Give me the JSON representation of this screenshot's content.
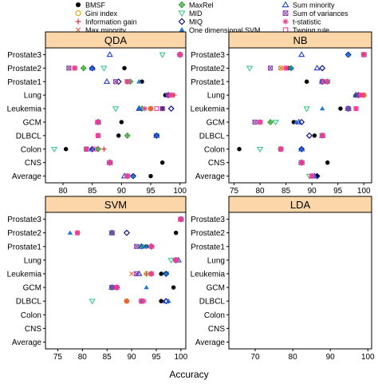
{
  "legend": [
    {
      "name": "BMSF",
      "marker": "dot",
      "color": "#000000"
    },
    {
      "name": "Gini index",
      "marker": "circle",
      "color": "#e69f00"
    },
    {
      "name": "Information gain",
      "marker": "plus",
      "color": "#d62728"
    },
    {
      "name": "Max minority",
      "marker": "x",
      "color": "#e8633a"
    },
    {
      "name": "MaxRel",
      "marker": "diamondplus",
      "color": "#2ca02c"
    },
    {
      "name": "MID",
      "marker": "tridown",
      "color": "#3cc889"
    },
    {
      "name": "MIQ",
      "marker": "diamond",
      "color": "#000080"
    },
    {
      "name": "One dimensional SVM",
      "marker": "trifill",
      "color": "#1f77d4"
    },
    {
      "name": "Sum minority",
      "marker": "triup",
      "color": "#1f3fd4"
    },
    {
      "name": "Sum of variances",
      "marker": "boxx",
      "color": "#8e44ad"
    },
    {
      "name": "t-statistic",
      "marker": "asterisk",
      "color": "#e83e8c"
    },
    {
      "name": "Twoing rule",
      "marker": "square",
      "color": "#ff3fa4"
    }
  ],
  "chart_data": {
    "type": "scatter",
    "xlabel": "Accuracy",
    "categories": [
      "Average",
      "CNS",
      "Colon",
      "DLBCL",
      "GCM",
      "Leukemia",
      "Lung",
      "Prostate1",
      "Prostate2",
      "Prostate3"
    ],
    "panels": [
      {
        "title": "QDA",
        "xlim": [
          77,
          101
        ],
        "xticks": [
          80,
          85,
          90,
          95,
          100
        ],
        "rows": {
          "Prostate3": {
            "BMSF": 100,
            "Gini index": 100,
            "Information gain": 100,
            "Max minority": 100,
            "MaxRel": 100,
            "MID": 97,
            "MIQ": 100,
            "One dimensional SVM": 100,
            "Sum minority": 88,
            "Sum of variances": 100,
            "t-statistic": 100,
            "Twoing rule": 100
          },
          "Prostate2": {
            "BMSF": 90.5,
            "Gini index": 82,
            "Information gain": 82,
            "Max minority": 81,
            "MaxRel": 83.5,
            "MID": 87,
            "MIQ": 85,
            "One dimensional SVM": 85,
            "Sum minority": 85,
            "Sum of variances": 81,
            "t-statistic": 82,
            "Twoing rule": 82
          },
          "Prostate1": {
            "BMSF": 93.5,
            "Gini index": 91,
            "Information gain": 91,
            "Max minority": 91,
            "MaxRel": 91.5,
            "MID": 91,
            "MIQ": 89.5,
            "One dimensional SVM": 93,
            "Sum minority": 87.5,
            "Sum of variances": 89,
            "t-statistic": 91,
            "Twoing rule": 91
          },
          "Lung": {
            "BMSF": 97.5,
            "Gini index": 98.5,
            "Information gain": 99,
            "Max minority": 98.5,
            "MaxRel": 98,
            "MID": 98,
            "MIQ": 98,
            "One dimensional SVM": 98,
            "Sum minority": 98,
            "Sum of variances": 98,
            "t-statistic": 98.5,
            "Twoing rule": 98.5
          },
          "Leukemia": {
            "BMSF": 97,
            "Gini index": 95,
            "Information gain": 95,
            "Max minority": 95,
            "MaxRel": 93.5,
            "MID": 89,
            "MIQ": 98.5,
            "One dimensional SVM": 93,
            "Sum minority": 93,
            "Sum of variances": 97,
            "t-statistic": 94,
            "Twoing rule": 96
          },
          "GCM": {
            "BMSF": 90,
            "Gini index": 86,
            "Information gain": 86,
            "Max minority": 86,
            "MaxRel": 86,
            "MID": 86,
            "MIQ": 86,
            "One dimensional SVM": 86,
            "Sum minority": 86,
            "Sum of variances": 86,
            "t-statistic": 86,
            "Twoing rule": 86
          },
          "DLBCL": {
            "BMSF": 89.5,
            "Gini index": 86,
            "Information gain": 86,
            "Max minority": 86,
            "MaxRel": 91,
            "MID": 96,
            "MIQ": 96,
            "One dimensional SVM": 96,
            "Sum minority": 96,
            "Sum of variances": 86,
            "t-statistic": 86,
            "Twoing rule": 86
          },
          "Colon": {
            "BMSF": 80.5,
            "Gini index": 84,
            "Information gain": 87,
            "Max minority": 84,
            "MaxRel": 86,
            "MID": 78.5,
            "MIQ": 85,
            "One dimensional SVM": 85,
            "Sum minority": 85,
            "Sum of variances": 84,
            "t-statistic": 84,
            "Twoing rule": 85.5
          },
          "CNS": {
            "BMSF": 97,
            "Gini index": 88,
            "Information gain": 88,
            "Max minority": 88,
            "MaxRel": 88,
            "MID": 88,
            "MIQ": 88,
            "One dimensional SVM": 88,
            "Sum minority": 88,
            "Sum of variances": 88,
            "t-statistic": 88,
            "Twoing rule": 88
          },
          "Average": {
            "BMSF": 95,
            "Gini index": 91,
            "Information gain": 91,
            "Max minority": 91,
            "MaxRel": 91,
            "MID": 91,
            "MIQ": 92,
            "One dimensional SVM": 92,
            "Sum minority": 90.5,
            "Sum of variances": 91,
            "t-statistic": 91,
            "Twoing rule": 91
          }
        }
      },
      {
        "title": "NB",
        "xlim": [
          74,
          101.5
        ],
        "xticks": [
          75,
          80,
          85,
          90,
          95,
          100
        ],
        "rows": {
          "Prostate3": {
            "BMSF": 100,
            "Gini index": 100,
            "Information gain": 100,
            "Max minority": 100,
            "MaxRel": 100,
            "MID": 100,
            "MIQ": 97,
            "One dimensional SVM": 97,
            "Sum minority": 88,
            "Sum of variances": 100,
            "t-statistic": 100,
            "Twoing rule": 100
          },
          "Prostate2": {
            "BMSF": 85.5,
            "Gini index": 84,
            "Information gain": 85,
            "Max minority": 84,
            "MaxRel": 86,
            "MID": 78,
            "MIQ": 92,
            "One dimensional SVM": 86,
            "Sum minority": 91,
            "Sum of variances": 82,
            "t-statistic": 85,
            "Twoing rule": 85
          },
          "Prostate1": {
            "BMSF": 89,
            "Gini index": 93,
            "Information gain": 93,
            "Max minority": 93,
            "MaxRel": 93,
            "MID": 93,
            "MIQ": 92,
            "One dimensional SVM": 93,
            "Sum minority": 92,
            "Sum of variances": 92,
            "t-statistic": 93,
            "Twoing rule": 92.5
          },
          "Lung": {
            "BMSF": 98.5,
            "Gini index": 100,
            "Information gain": 100,
            "Max minority": 100,
            "MaxRel": 98.5,
            "MID": 99,
            "MIQ": 99,
            "One dimensional SVM": 99,
            "Sum minority": 98.5,
            "Sum of variances": 99,
            "t-statistic": 99.5,
            "Twoing rule": 99.5
          },
          "Leukemia": {
            "BMSF": 95.5,
            "Gini index": 97,
            "Information gain": 97,
            "Max minority": 97,
            "MaxRel": 97,
            "MID": 89,
            "MIQ": 97,
            "One dimensional SVM": 92,
            "Sum minority": 97,
            "Sum of variances": 97,
            "t-statistic": 98.5,
            "Twoing rule": 98.5
          },
          "GCM": {
            "BMSF": 86.5,
            "Gini index": 80,
            "Information gain": 80,
            "Max minority": 80,
            "MaxRel": 82,
            "MID": 83,
            "MIQ": 88,
            "One dimensional SVM": 87,
            "Sum minority": 87.5,
            "Sum of variances": 79,
            "t-statistic": 80,
            "Twoing rule": 80
          },
          "DLBCL": {
            "BMSF": 90.5,
            "Gini index": 92,
            "Information gain": 92,
            "Max minority": 92,
            "MaxRel": 92,
            "MID": 92,
            "MIQ": 89.5,
            "One dimensional SVM": 92,
            "Sum minority": 92,
            "Sum of variances": 92,
            "t-statistic": 92,
            "Twoing rule": 92
          },
          "Colon": {
            "BMSF": 76,
            "Gini index": 84,
            "Information gain": 84,
            "Max minority": 84,
            "MaxRel": 84,
            "MID": 80,
            "MIQ": 88,
            "One dimensional SVM": 88,
            "Sum minority": 88,
            "Sum of variances": 84,
            "t-statistic": 84,
            "Twoing rule": 84
          },
          "CNS": {
            "BMSF": 93,
            "Gini index": 88,
            "Information gain": 88,
            "Max minority": 88,
            "MaxRel": 88,
            "MID": 88,
            "MIQ": 88,
            "One dimensional SVM": 88,
            "Sum minority": 88,
            "Sum of variances": 88,
            "t-statistic": 88,
            "Twoing rule": 88
          },
          "Average": {
            "BMSF": 91,
            "Gini index": 90,
            "Information gain": 90,
            "Max minority": 90,
            "MaxRel": 90,
            "MID": 89.5,
            "MIQ": 91,
            "One dimensional SVM": 90.5,
            "Sum minority": 90.5,
            "Sum of variances": 90,
            "t-statistic": 90,
            "Twoing rule": 90
          }
        }
      },
      {
        "title": "SVM",
        "xlim": [
          72.5,
          101
        ],
        "xticks": [
          75,
          80,
          85,
          90,
          95,
          100
        ],
        "rows": {
          "Prostate3": {
            "BMSF": 100,
            "Gini index": 100,
            "Information gain": 100,
            "Max minority": 100,
            "MaxRel": 100,
            "MID": 100,
            "MIQ": 100,
            "One dimensional SVM": 100,
            "Sum minority": 100,
            "Sum of variances": 100,
            "t-statistic": 100,
            "Twoing rule": 100
          },
          "Prostate2": {
            "BMSF": 99,
            "Gini index": 79,
            "Information gain": 79,
            "Max minority": 79,
            "MaxRel": 86,
            "MID": 86,
            "MIQ": 89,
            "One dimensional SVM": 77.5,
            "Sum minority": 86,
            "Sum of variances": 86,
            "t-statistic": 79,
            "Twoing rule": 79
          },
          "Prostate1": {
            "BMSF": 93,
            "Gini index": 94,
            "Information gain": 94,
            "Max minority": 94,
            "MaxRel": 92,
            "MID": 92,
            "MIQ": 94,
            "One dimensional SVM": 93,
            "Sum minority": 92,
            "Sum of variances": 91,
            "t-statistic": 94,
            "Twoing rule": 94
          },
          "Lung": {
            "BMSF": 99,
            "Gini index": 99,
            "Information gain": 99,
            "Max minority": 99,
            "MaxRel": 99,
            "MID": 98,
            "MIQ": 99,
            "One dimensional SVM": 99,
            "Sum minority": 99.5,
            "Sum of variances": 99,
            "t-statistic": 99,
            "Twoing rule": 99
          },
          "Leukemia": {
            "BMSF": 96,
            "Gini index": 93,
            "Information gain": 93,
            "Max minority": 90,
            "MaxRel": 94,
            "MID": 97,
            "MIQ": 97,
            "One dimensional SVM": 97,
            "Sum minority": 91.5,
            "Sum of variances": 91,
            "t-statistic": 94,
            "Twoing rule": 94
          },
          "GCM": {
            "BMSF": 98.5,
            "Gini index": 87,
            "Information gain": 87,
            "Max minority": 87,
            "MaxRel": 86,
            "MID": 86,
            "MIQ": 87,
            "One dimensional SVM": 93,
            "Sum minority": 86,
            "Sum of variances": 86,
            "t-statistic": 87,
            "Twoing rule": 87
          },
          "DLBCL": {
            "BMSF": 96,
            "Gini index": 89,
            "Information gain": 89,
            "Max minority": 89,
            "MaxRel": 92,
            "MID": 82,
            "MIQ": 97,
            "One dimensional SVM": 97.5,
            "Sum minority": 97,
            "Sum of variances": 92,
            "t-statistic": 92.5,
            "Twoing rule": 92
          }
        }
      }
    ]
  }
}
